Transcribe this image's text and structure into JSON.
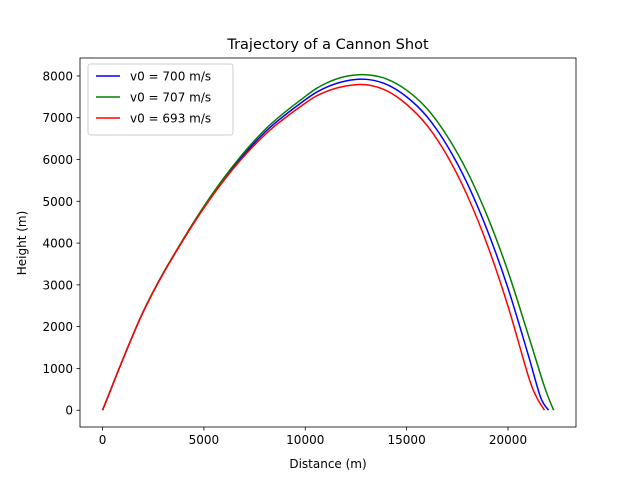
{
  "chart_data": {
    "type": "line",
    "title": "Trajectory of a Cannon Shot",
    "xlabel": "Distance (m)",
    "ylabel": "Height (m)",
    "xlim": [
      -1112,
      23354
    ],
    "ylim": [
      -402,
      8430
    ],
    "xticks": [
      0,
      5000,
      10000,
      15000,
      20000
    ],
    "yticks": [
      0,
      1000,
      2000,
      3000,
      4000,
      5000,
      6000,
      7000,
      8000
    ],
    "xtick_labels": [
      "0",
      "5000",
      "10000",
      "15000",
      "20000"
    ],
    "ytick_labels": [
      "0",
      "1000",
      "2000",
      "3000",
      "4000",
      "5000",
      "6000",
      "7000",
      "8000"
    ],
    "grid": false,
    "legend_position": "upper-left",
    "series": [
      {
        "name": "v0 = 700 m/s",
        "color": "#0000ff",
        "x": [
          0,
          2000,
          4000,
          6000,
          8000,
          10000,
          11000,
          12000,
          13000,
          14000,
          15000,
          16000,
          17000,
          18000,
          19000,
          20000,
          21000,
          21600,
          22000
        ],
        "y": [
          0,
          2350,
          4100,
          5540,
          6650,
          7430,
          7720,
          7880,
          7920,
          7800,
          7500,
          7030,
          6330,
          5420,
          4280,
          2920,
          1320,
          320,
          0
        ]
      },
      {
        "name": "v0 = 707 m/s",
        "color": "#008000",
        "x": [
          0,
          2000,
          4000,
          6000,
          8000,
          10000,
          11000,
          12000,
          13000,
          14000,
          15000,
          16000,
          17000,
          18000,
          19000,
          20000,
          21000,
          21800,
          22250
        ],
        "y": [
          0,
          2355,
          4110,
          5570,
          6710,
          7510,
          7820,
          7990,
          8030,
          7930,
          7660,
          7220,
          6560,
          5700,
          4620,
          3320,
          1800,
          560,
          0
        ]
      },
      {
        "name": "v0 = 693 m/s",
        "color": "#ff0000",
        "x": [
          0,
          2000,
          4000,
          6000,
          8000,
          10000,
          11000,
          12000,
          13000,
          14000,
          15000,
          16000,
          17000,
          18000,
          19000,
          20000,
          21000,
          21400,
          21800
        ],
        "y": [
          0,
          2345,
          4090,
          5510,
          6590,
          7350,
          7620,
          7760,
          7790,
          7650,
          7320,
          6820,
          6090,
          5130,
          3930,
          2490,
          820,
          320,
          0
        ]
      }
    ]
  }
}
